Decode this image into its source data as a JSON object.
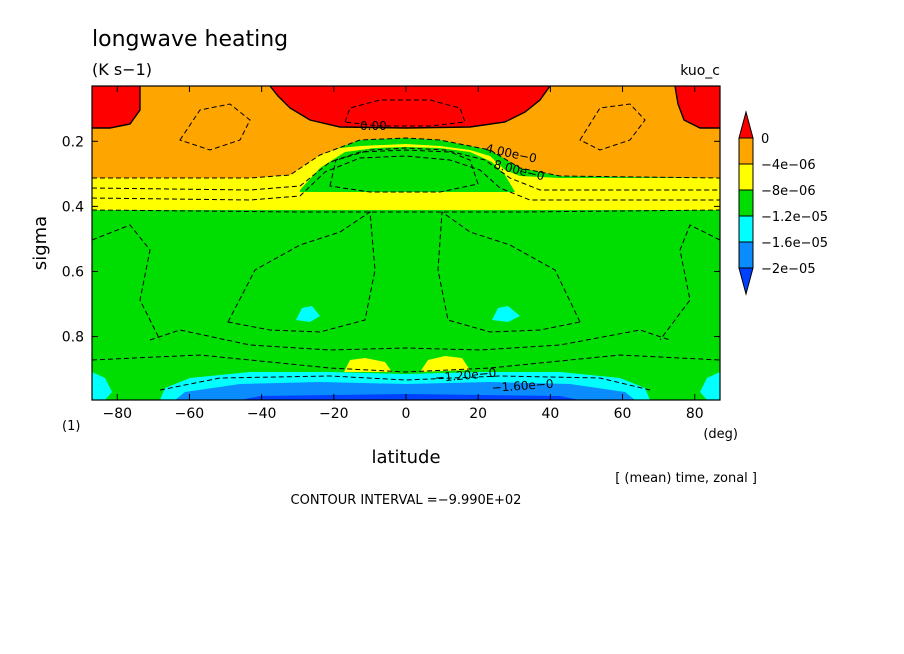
{
  "header": {
    "title": "longwave heating",
    "units": "(K s−1)",
    "run_label": "kuo_c",
    "panel_number": "(1)"
  },
  "footer": {
    "averaging_note": "[ (mean) time, zonal ]",
    "contour_interval": "CONTOUR INTERVAL =−9.990E+02"
  },
  "chart_data": {
    "type": "heatmap",
    "xlabel": "latitude",
    "xunit": "(deg)",
    "ylabel": "sigma",
    "xlim": [
      -87,
      87
    ],
    "ylim": [
      0.03,
      0.995
    ],
    "y_inverted": true,
    "x_ticks": [
      -80,
      -60,
      -40,
      -20,
      0,
      20,
      40,
      60,
      80
    ],
    "x_tick_labels": [
      "−80",
      "−60",
      "−40",
      "−20",
      "0",
      "20",
      "40",
      "60",
      "80"
    ],
    "y_ticks": [
      0.2,
      0.4,
      0.6,
      0.8
    ],
    "y_tick_labels": [
      "0.2",
      "0.4",
      "0.6",
      "0.8"
    ],
    "colorbar": {
      "levels": [
        0,
        -4e-06,
        -8e-06,
        -1.2e-05,
        -1.6e-05,
        -2e-05
      ],
      "labels": [
        "0",
        "−4e−06",
        "−8e−06",
        "−1.2e−05",
        "−1.6e−05",
        "−2e−05"
      ],
      "colors": [
        "#ff0000",
        "#ffa500",
        "#ffff00",
        "#00dd00",
        "#00ffff",
        "#0a8cff",
        "#0040ff"
      ]
    },
    "contour_labels": [
      "0.00",
      "4.00e−0",
      "8.00e−0",
      "−1.20e−0",
      "−1.60e−0"
    ]
  }
}
